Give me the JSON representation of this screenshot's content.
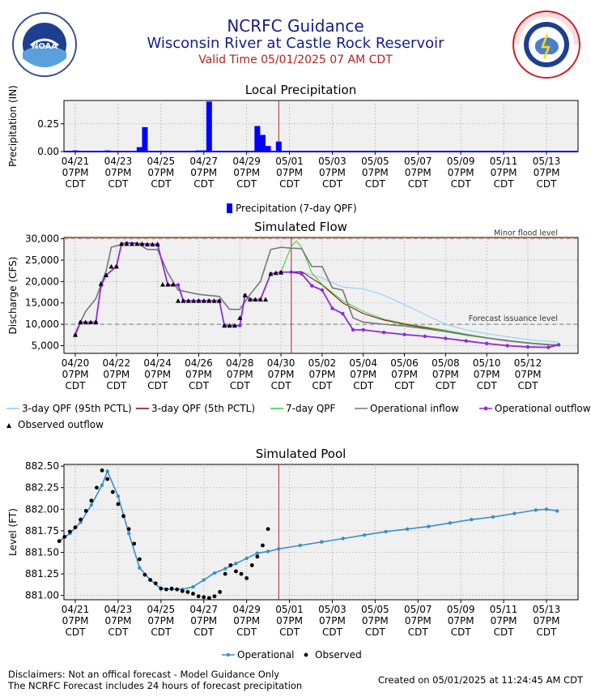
{
  "header": {
    "title": "NCRFC Guidance",
    "subtitle": "Wisconsin River at Castle Rock Reservoir",
    "valid_time": "Valid Time 05/01/2025 07 AM CDT",
    "left_logo_text": "NOAA",
    "left_logo_ring": "NATIONAL OCEANIC AND ATMOSPHERIC ADMINISTRATION · U.S. DEPARTMENT OF COMMERCE",
    "right_logo_ring": "NATIONAL WEATHER SERVICE"
  },
  "colors": {
    "title": "#1a1a8c",
    "valid_time": "#b22222",
    "precip": "#0000ff",
    "obs_line": "#b22222",
    "qpf95": "#87cefa",
    "qpf5": "#8b0000",
    "qpf7": "#32cd32",
    "inflow": "#777777",
    "outflow": "#8a2be2",
    "observed": "#000000",
    "pool_line": "#3a8fc8",
    "flood": "#e08a50"
  },
  "footer": {
    "disclaimer1": "Disclaimers: Not an offical forecast - Model Guidance Only",
    "disclaimer2": "The NCRFC Forecast includes 24 hours of forecast precipitation",
    "created": "Created on 05/01/2025 at 11:24:45 AM CDT"
  },
  "chart_data": [
    {
      "type": "bar",
      "title": "Local Precipitation",
      "ylabel": "Precipitation (IN)",
      "x_tick_labels": [
        [
          "04/21",
          "07PM",
          "CDT"
        ],
        [
          "04/23",
          "07PM",
          "CDT"
        ],
        [
          "04/25",
          "07PM",
          "CDT"
        ],
        [
          "04/27",
          "07PM",
          "CDT"
        ],
        [
          "04/29",
          "07PM",
          "CDT"
        ],
        [
          "05/01",
          "07PM",
          "CDT"
        ],
        [
          "05/03",
          "07PM",
          "CDT"
        ],
        [
          "05/05",
          "07PM",
          "CDT"
        ],
        [
          "05/07",
          "07PM",
          "CDT"
        ],
        [
          "05/09",
          "07PM",
          "CDT"
        ],
        [
          "05/11",
          "07PM",
          "CDT"
        ],
        [
          "05/13",
          "07PM",
          "CDT"
        ]
      ],
      "y_tick_labels": [
        "0.00",
        "0.25"
      ],
      "ylim": [
        0,
        0.46
      ],
      "series": [
        {
          "name": "Precipitation (7-day QPF)",
          "points": [
            {
              "x": "04/21 19:00",
              "y": 0.01
            },
            {
              "x": "04/22 13:00",
              "y": 0.0
            },
            {
              "x": "04/23 01:00",
              "y": 0.0
            },
            {
              "x": "04/23 07:00",
              "y": 0.01
            },
            {
              "x": "04/24 19:00",
              "y": 0.04
            },
            {
              "x": "04/25 01:00",
              "y": 0.22
            },
            {
              "x": "04/27 13:00",
              "y": 0.01
            },
            {
              "x": "04/27 19:00",
              "y": 0.01
            },
            {
              "x": "04/28 01:00",
              "y": 0.45
            },
            {
              "x": "04/30 07:00",
              "y": 0.23
            },
            {
              "x": "04/30 13:00",
              "y": 0.15
            },
            {
              "x": "04/30 19:00",
              "y": 0.05
            },
            {
              "x": "05/01 07:00",
              "y": 0.09
            }
          ]
        }
      ],
      "marker_line": "05/01 07:00"
    },
    {
      "type": "line",
      "title": "Simulated Flow",
      "ylabel": "Discharge (CFS)",
      "x_tick_labels": [
        [
          "04/20",
          "07PM",
          "CDT"
        ],
        [
          "04/22",
          "07PM",
          "CDT"
        ],
        [
          "04/24",
          "07PM",
          "CDT"
        ],
        [
          "04/26",
          "07PM",
          "CDT"
        ],
        [
          "04/28",
          "07PM",
          "CDT"
        ],
        [
          "04/30",
          "07PM",
          "CDT"
        ],
        [
          "05/02",
          "07PM",
          "CDT"
        ],
        [
          "05/04",
          "07PM",
          "CDT"
        ],
        [
          "05/06",
          "07PM",
          "CDT"
        ],
        [
          "05/08",
          "07PM",
          "CDT"
        ],
        [
          "05/10",
          "07PM",
          "CDT"
        ],
        [
          "05/12",
          "07PM",
          "CDT"
        ]
      ],
      "y_tick_labels": [
        "5,000",
        "10,000",
        "15,000",
        "20,000",
        "25,000",
        "30,000"
      ],
      "ylim": [
        3200,
        30300
      ],
      "reference_lines": [
        {
          "label": "Minor flood level",
          "y": 30000
        },
        {
          "label": "Forecast issuance level",
          "y": 10000
        }
      ],
      "series": [
        {
          "name": "3-day QPF (95th PCTL)",
          "x": [
            "04/30 19:00",
            "05/01 19:00",
            "05/02 19:00",
            "05/03 19:00",
            "05/04 19:00",
            "05/05 19:00",
            "05/06 19:00",
            "05/07 19:00",
            "05/08 19:00",
            "05/09 19:00",
            "05/10 19:00",
            "05/11 19:00",
            "05/12 19:00",
            "05/13 19:00",
            "05/14 07:00"
          ],
          "y": [
            22200,
            22300,
            20800,
            18700,
            18300,
            16800,
            14600,
            12300,
            10000,
            8700,
            7800,
            7100,
            6400,
            6000,
            5800
          ]
        },
        {
          "name": "3-day QPF (5th PCTL)",
          "x": [
            "04/30 19:00",
            "05/01 19:00",
            "05/02 19:00",
            "05/03 19:00",
            "05/04 19:00",
            "05/05 19:00",
            "05/06 19:00",
            "05/07 19:00",
            "05/08 19:00",
            "05/09 19:00",
            "05/10 19:00",
            "05/11 19:00",
            "05/12 19:00",
            "05/13 19:00",
            "05/14 07:00"
          ],
          "y": [
            22200,
            22300,
            19200,
            15000,
            12500,
            11000,
            10000,
            9200,
            8400,
            7600,
            6800,
            6100,
            5600,
            5300,
            5200
          ]
        },
        {
          "name": "7-day QPF",
          "x": [
            "04/30 19:00",
            "05/01 07:00",
            "05/01 13:00",
            "05/01 19:00",
            "05/02 07:00",
            "05/02 19:00",
            "05/03 19:00",
            "05/04 19:00",
            "05/05 19:00",
            "05/06 19:00",
            "05/07 19:00",
            "05/08 19:00",
            "05/09 19:00",
            "05/10 19:00",
            "05/11 19:00",
            "05/12 19:00",
            "05/13 19:00",
            "05/14 07:00"
          ],
          "y": [
            22200,
            28200,
            29500,
            28000,
            22000,
            19300,
            15500,
            13000,
            11200,
            10200,
            9400,
            8600,
            7700,
            6900,
            6200,
            5700,
            5300,
            5200
          ]
        },
        {
          "name": "Operational inflow",
          "x": [
            "04/20 19:00",
            "04/21 07:00",
            "04/21 19:00",
            "04/22 07:00",
            "04/22 13:00",
            "04/23 07:00",
            "04/23 19:00",
            "04/24 07:00",
            "04/24 19:00",
            "04/25 07:00",
            "04/25 19:00",
            "04/26 19:00",
            "04/27 19:00",
            "04/28 07:00",
            "04/28 19:00",
            "04/29 07:00",
            "04/29 19:00",
            "04/30 07:00",
            "04/30 19:00",
            "05/01 07:00",
            "05/01 19:00",
            "05/02 07:00",
            "05/02 19:00",
            "05/03 07:00",
            "05/03 19:00",
            "05/04 07:00",
            "05/04 19:00",
            "05/05 19:00",
            "05/06 19:00",
            "05/07 19:00",
            "05/08 19:00",
            "05/09 19:00",
            "05/10 19:00",
            "05/11 19:00",
            "05/12 19:00",
            "05/13 19:00",
            "05/14 07:00"
          ],
          "y": [
            8000,
            13000,
            16000,
            22500,
            28000,
            29000,
            29000,
            27500,
            27500,
            22000,
            18000,
            17000,
            16500,
            13500,
            13500,
            17000,
            20000,
            27500,
            28000,
            27800,
            27700,
            23500,
            23500,
            18500,
            18000,
            11500,
            10500,
            10000,
            9600,
            9000,
            8300,
            7500,
            6800,
            6200,
            5600,
            5200,
            5100
          ]
        },
        {
          "name": "Operational outflow",
          "x": [
            "04/20 19:00",
            "04/21 01:00",
            "04/21 19:00",
            "04/22 01:00",
            "04/22 07:00",
            "04/22 19:00",
            "04/23 01:00",
            "04/23 07:00",
            "04/24 19:00",
            "04/25 07:00",
            "04/25 19:00",
            "04/26 01:00",
            "04/26 19:00",
            "04/27 07:00",
            "04/27 19:00",
            "04/28 01:00",
            "04/28 19:00",
            "04/29 01:00",
            "04/29 07:00",
            "04/29 19:00",
            "04/30 07:00",
            "04/30 19:00",
            "05/01 07:00",
            "05/01 19:00",
            "05/02 07:00",
            "05/02 19:00",
            "05/03 07:00",
            "05/03 19:00",
            "05/04 07:00",
            "05/04 19:00",
            "05/05 19:00",
            "05/06 19:00",
            "05/07 19:00",
            "05/08 19:00",
            "05/09 19:00",
            "05/10 19:00",
            "05/11 19:00",
            "05/12 19:00",
            "05/13 19:00",
            "05/14 07:00"
          ],
          "y": [
            7500,
            10500,
            10500,
            19000,
            21500,
            23500,
            28800,
            29000,
            28700,
            19200,
            19200,
            15500,
            15500,
            15500,
            15500,
            9700,
            9700,
            16800,
            15800,
            15800,
            21800,
            22200,
            22200,
            21800,
            19000,
            18000,
            13700,
            12500,
            8700,
            8700,
            8100,
            7600,
            7200,
            6700,
            6100,
            5500,
            5000,
            4700,
            4600,
            5200
          ]
        },
        {
          "name": "Observed outflow",
          "x": [
            "04/20 19:00",
            "04/21 01:00",
            "04/21 07:00",
            "04/21 13:00",
            "04/21 19:00",
            "04/22 01:00",
            "04/22 07:00",
            "04/22 13:00",
            "04/22 19:00",
            "04/23 01:00",
            "04/23 07:00",
            "04/23 13:00",
            "04/23 19:00",
            "04/24 01:00",
            "04/24 07:00",
            "04/24 13:00",
            "04/24 19:00",
            "04/25 01:00",
            "04/25 07:00",
            "04/25 13:00",
            "04/25 19:00",
            "04/26 01:00",
            "04/26 07:00",
            "04/26 13:00",
            "04/26 19:00",
            "04/27 01:00",
            "04/27 07:00",
            "04/27 13:00",
            "04/27 19:00",
            "04/28 01:00",
            "04/28 07:00",
            "04/28 13:00",
            "04/28 19:00",
            "04/29 01:00",
            "04/29 07:00",
            "04/29 13:00",
            "04/29 19:00",
            "04/30 01:00",
            "04/30 07:00",
            "04/30 13:00",
            "04/30 19:00"
          ],
          "y": [
            7500,
            10500,
            10500,
            10500,
            10500,
            19500,
            21500,
            23500,
            23500,
            28800,
            28800,
            28800,
            28800,
            28800,
            28700,
            28700,
            28700,
            19300,
            19300,
            19300,
            15500,
            15500,
            15500,
            15500,
            15500,
            15500,
            15500,
            15500,
            15500,
            9700,
            9700,
            9700,
            11500,
            16800,
            15800,
            15800,
            15800,
            15800,
            21800,
            22000,
            22100
          ]
        }
      ],
      "marker_line": "05/01 07:00"
    },
    {
      "type": "line",
      "title": "Simulated Pool",
      "ylabel": "Level (FT)",
      "x_tick_labels": [
        [
          "04/21",
          "07PM",
          "CDT"
        ],
        [
          "04/23",
          "07PM",
          "CDT"
        ],
        [
          "04/25",
          "07PM",
          "CDT"
        ],
        [
          "04/27",
          "07PM",
          "CDT"
        ],
        [
          "04/29",
          "07PM",
          "CDT"
        ],
        [
          "05/01",
          "07PM",
          "CDT"
        ],
        [
          "05/03",
          "07PM",
          "CDT"
        ],
        [
          "05/05",
          "07PM",
          "CDT"
        ],
        [
          "05/07",
          "07PM",
          "CDT"
        ],
        [
          "05/09",
          "07PM",
          "CDT"
        ],
        [
          "05/11",
          "07PM",
          "CDT"
        ],
        [
          "05/13",
          "07PM",
          "CDT"
        ]
      ],
      "y_tick_labels": [
        "881.00",
        "881.25",
        "881.50",
        "881.75",
        "882.00",
        "882.25",
        "882.50"
      ],
      "ylim": [
        880.95,
        882.52
      ],
      "series": [
        {
          "name": "Operational",
          "x": [
            "04/21 01:00",
            "04/21 13:00",
            "04/22 01:00",
            "04/22 13:00",
            "04/23 01:00",
            "04/23 07:00",
            "04/23 19:00",
            "04/24 07:00",
            "04/24 19:00",
            "04/25 07:00",
            "04/25 19:00",
            "04/26 07:00",
            "04/26 19:00",
            "04/27 07:00",
            "04/27 19:00",
            "04/28 07:00",
            "04/28 19:00",
            "04/29 07:00",
            "04/29 19:00",
            "04/30 07:00",
            "04/30 19:00",
            "05/01 07:00",
            "05/02 07:00",
            "05/03 07:00",
            "05/04 07:00",
            "05/05 07:00",
            "05/06 07:00",
            "05/07 07:00",
            "05/08 07:00",
            "05/09 07:00",
            "05/10 07:00",
            "05/11 07:00",
            "05/12 07:00",
            "05/13 07:00",
            "05/13 19:00",
            "05/14 07:00"
          ],
          "y": [
            881.63,
            881.72,
            881.85,
            882.05,
            882.28,
            882.44,
            882.15,
            881.72,
            881.32,
            881.18,
            881.08,
            881.07,
            881.07,
            881.1,
            881.18,
            881.26,
            881.31,
            881.37,
            881.43,
            881.49,
            881.51,
            881.54,
            881.58,
            881.62,
            881.66,
            881.7,
            881.74,
            881.77,
            881.8,
            881.84,
            881.88,
            881.91,
            881.95,
            881.99,
            882.0,
            881.98
          ]
        },
        {
          "name": "Observed",
          "x": [
            "04/21 01:00",
            "04/21 07:00",
            "04/21 13:00",
            "04/21 19:00",
            "04/22 01:00",
            "04/22 07:00",
            "04/22 13:00",
            "04/22 19:00",
            "04/23 01:00",
            "04/23 07:00",
            "04/23 13:00",
            "04/23 19:00",
            "04/24 01:00",
            "04/24 07:00",
            "04/24 13:00",
            "04/24 19:00",
            "04/25 01:00",
            "04/25 07:00",
            "04/25 13:00",
            "04/25 19:00",
            "04/26 01:00",
            "04/26 07:00",
            "04/26 13:00",
            "04/26 19:00",
            "04/27 01:00",
            "04/27 07:00",
            "04/27 13:00",
            "04/27 19:00",
            "04/28 01:00",
            "04/28 07:00",
            "04/28 13:00",
            "04/28 19:00",
            "04/29 01:00",
            "04/29 07:00",
            "04/29 13:00",
            "04/29 19:00",
            "04/30 01:00",
            "04/30 07:00",
            "04/30 13:00",
            "04/30 19:00"
          ],
          "y": [
            881.63,
            881.68,
            881.74,
            881.79,
            881.88,
            881.98,
            882.1,
            882.25,
            882.45,
            882.35,
            882.2,
            882.06,
            881.92,
            881.77,
            881.6,
            881.42,
            881.24,
            881.18,
            881.14,
            881.08,
            881.07,
            881.08,
            881.07,
            881.05,
            881.04,
            881.02,
            880.99,
            880.98,
            880.97,
            880.99,
            881.04,
            881.25,
            881.35,
            881.28,
            881.25,
            881.2,
            881.35,
            881.45,
            881.58,
            881.77
          ]
        }
      ],
      "marker_line": "05/01 07:00"
    }
  ]
}
